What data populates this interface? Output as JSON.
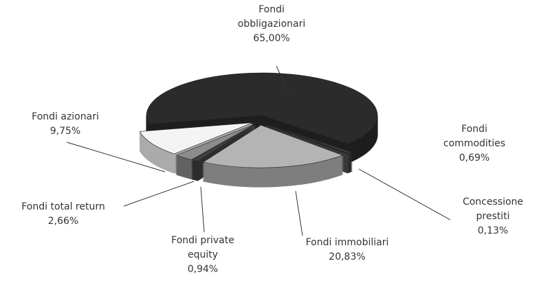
{
  "chart_data": {
    "type": "pie",
    "categories": [
      "Fondi obbligazionari",
      "Fondi commodities",
      "Concessione prestiti",
      "Fondi immobiliari",
      "Fondi private equity",
      "Fondi total return",
      "Fondi azionari"
    ],
    "values": [
      65.0,
      0.69,
      0.13,
      20.83,
      0.94,
      2.66,
      9.75
    ],
    "value_labels": [
      "65,00%",
      "0,69%",
      "0,13%",
      "20,83%",
      "0,94%",
      "2,66%",
      "9,75%"
    ],
    "colors": [
      "#2b2b2b",
      "#3a3a3a",
      "#555555",
      "#b4b4b4",
      "#404040",
      "#8c8c8c",
      "#f4f4f4"
    ]
  }
}
